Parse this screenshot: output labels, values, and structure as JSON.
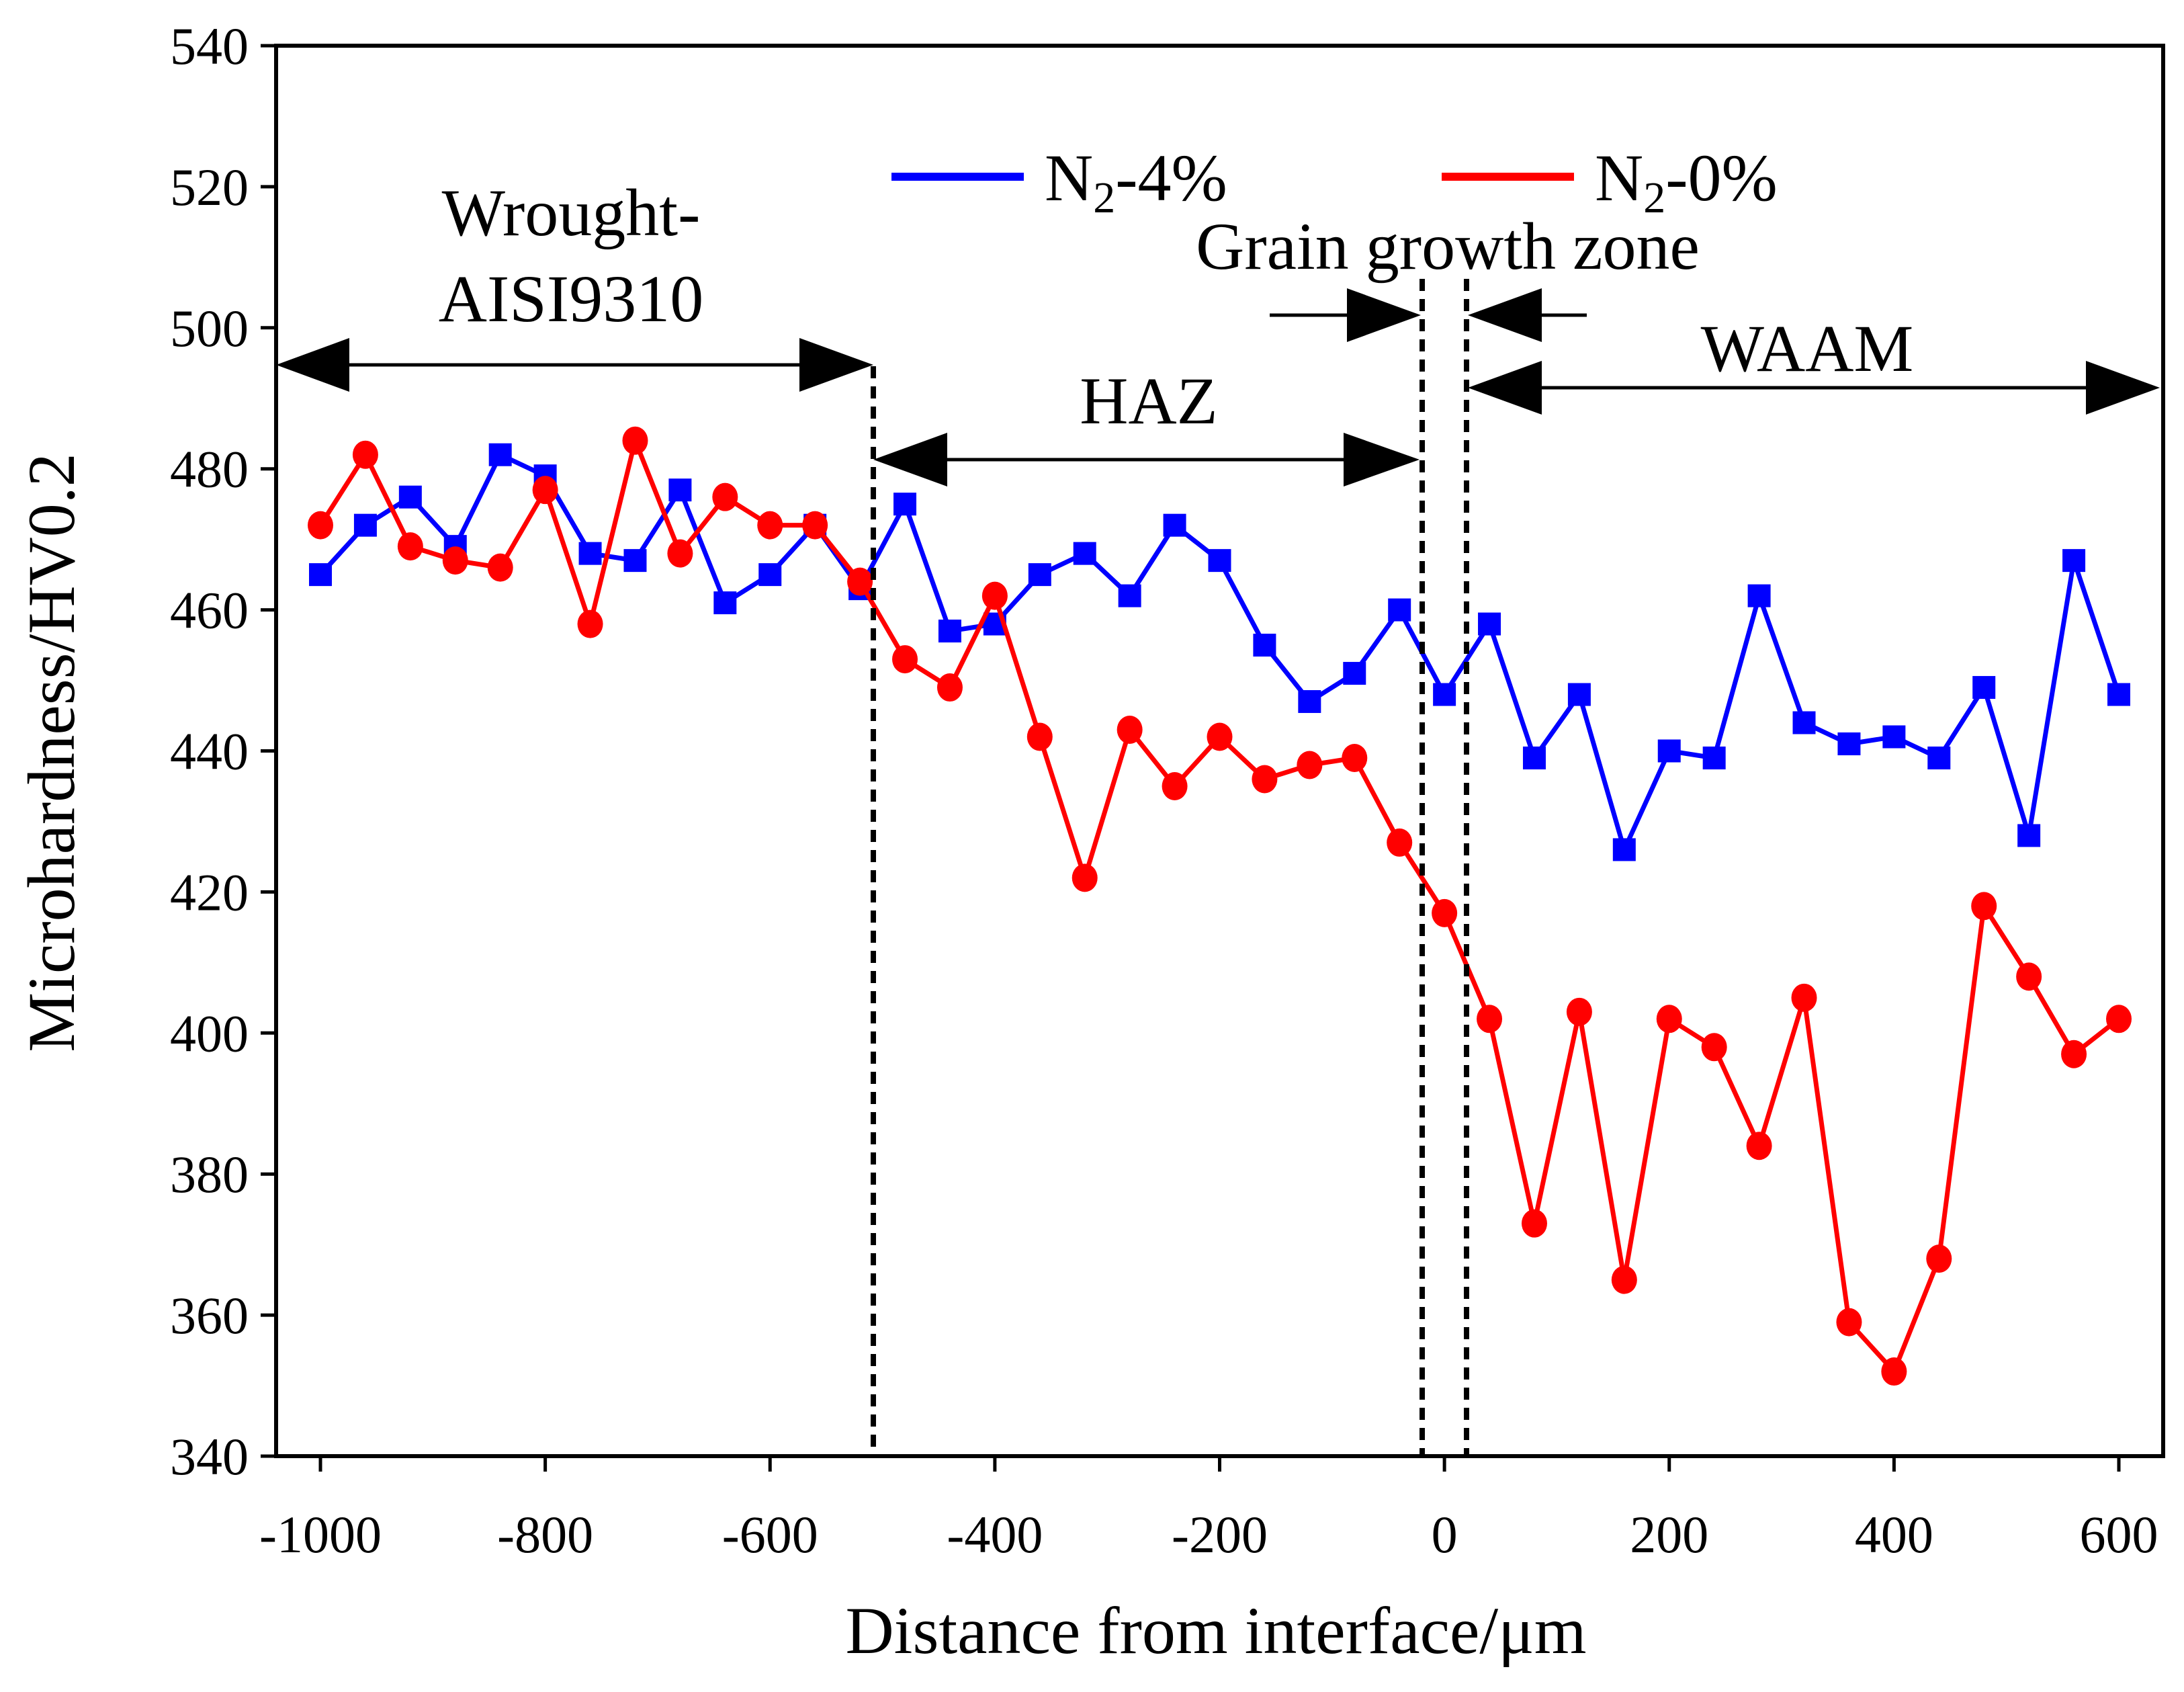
{
  "chart_data": {
    "type": "line",
    "title": "",
    "xlabel": "Distance from interface/μm",
    "ylabel": "Microhardness/HV0.2",
    "xlim": [
      -1060,
      640
    ],
    "ylim": [
      340,
      540
    ],
    "xticks": [
      -1000,
      -800,
      -600,
      -400,
      -200,
      0,
      200,
      400,
      600
    ],
    "yticks": [
      340,
      360,
      380,
      400,
      420,
      440,
      460,
      480,
      500,
      520,
      540
    ],
    "grid": false,
    "legend_position": "top-right",
    "x": [
      -1000,
      -960,
      -920,
      -880,
      -840,
      -800,
      -760,
      -720,
      -680,
      -640,
      -600,
      -560,
      -520,
      -480,
      -440,
      -400,
      -360,
      -320,
      -280,
      -240,
      -200,
      -160,
      -120,
      -80,
      -40,
      0,
      40,
      80,
      120,
      160,
      200,
      240,
      280,
      320,
      360,
      400,
      440,
      480,
      520,
      560,
      600
    ],
    "series": [
      {
        "name": "N2-4%",
        "label_main": "N",
        "label_sub": "2",
        "label_rest": "-4%",
        "color": "#0000ff",
        "marker": "square",
        "values": [
          465,
          472,
          476,
          469,
          482,
          479,
          468,
          467,
          477,
          461,
          465,
          472,
          463,
          475,
          457,
          458,
          465,
          468,
          462,
          472,
          467,
          455,
          447,
          451,
          460,
          448,
          458,
          439,
          448,
          426,
          440,
          439,
          462,
          444,
          441,
          442,
          439,
          449,
          428,
          467,
          448
        ]
      },
      {
        "name": "N2-0%",
        "label_main": "N",
        "label_sub": "2",
        "label_rest": "-0%",
        "color": "#ff0000",
        "marker": "circle",
        "values": [
          472,
          482,
          469,
          467,
          466,
          477,
          458,
          484,
          468,
          476,
          472,
          472,
          464,
          453,
          449,
          462,
          442,
          422,
          443,
          435,
          442,
          436,
          438,
          439,
          427,
          417,
          402,
          373,
          403,
          365,
          402,
          398,
          384,
          405,
          359,
          352,
          368,
          418,
          408,
          397,
          402
        ]
      }
    ],
    "annotations": {
      "wrought_line1": "Wrought-",
      "wrought_line2": "AISI9310",
      "haz": "HAZ",
      "grain_growth": "Grain growth zone",
      "waam": "WAAM"
    }
  }
}
